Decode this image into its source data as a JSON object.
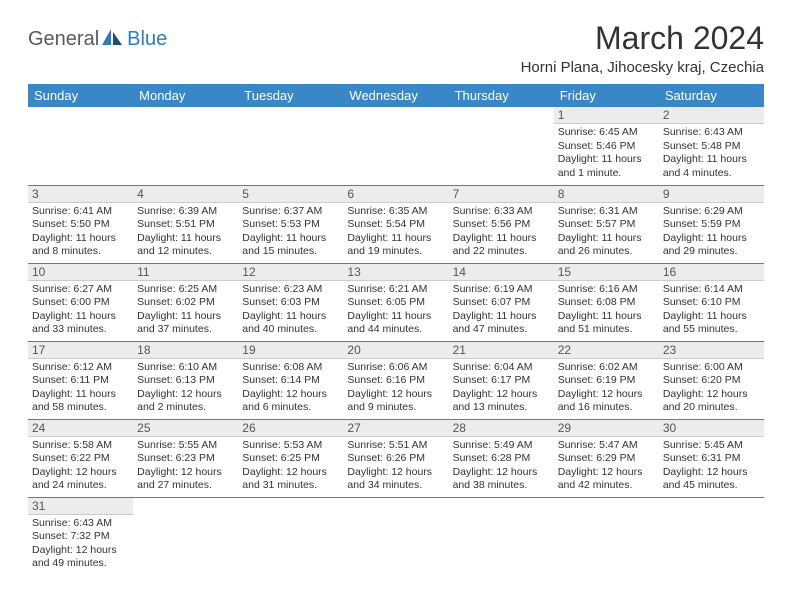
{
  "brand": {
    "part1": "General",
    "part2": "Blue"
  },
  "title": "March 2024",
  "location": "Horni Plana, Jihocesky kraj, Czechia",
  "colors": {
    "header_bg": "#3a87c8",
    "header_fg": "#ffffff",
    "daynum_bg": "#ececec",
    "border": "#3a87c8",
    "logo_gray": "#5a5a5a",
    "logo_blue": "#2f7bbf"
  },
  "weekdays": [
    "Sunday",
    "Monday",
    "Tuesday",
    "Wednesday",
    "Thursday",
    "Friday",
    "Saturday"
  ],
  "weeks": [
    [
      {
        "day": "",
        "sunrise": "",
        "sunset": "",
        "daylight": ""
      },
      {
        "day": "",
        "sunrise": "",
        "sunset": "",
        "daylight": ""
      },
      {
        "day": "",
        "sunrise": "",
        "sunset": "",
        "daylight": ""
      },
      {
        "day": "",
        "sunrise": "",
        "sunset": "",
        "daylight": ""
      },
      {
        "day": "",
        "sunrise": "",
        "sunset": "",
        "daylight": ""
      },
      {
        "day": "1",
        "sunrise": "Sunrise: 6:45 AM",
        "sunset": "Sunset: 5:46 PM",
        "daylight": "Daylight: 11 hours and 1 minute."
      },
      {
        "day": "2",
        "sunrise": "Sunrise: 6:43 AM",
        "sunset": "Sunset: 5:48 PM",
        "daylight": "Daylight: 11 hours and 4 minutes."
      }
    ],
    [
      {
        "day": "3",
        "sunrise": "Sunrise: 6:41 AM",
        "sunset": "Sunset: 5:50 PM",
        "daylight": "Daylight: 11 hours and 8 minutes."
      },
      {
        "day": "4",
        "sunrise": "Sunrise: 6:39 AM",
        "sunset": "Sunset: 5:51 PM",
        "daylight": "Daylight: 11 hours and 12 minutes."
      },
      {
        "day": "5",
        "sunrise": "Sunrise: 6:37 AM",
        "sunset": "Sunset: 5:53 PM",
        "daylight": "Daylight: 11 hours and 15 minutes."
      },
      {
        "day": "6",
        "sunrise": "Sunrise: 6:35 AM",
        "sunset": "Sunset: 5:54 PM",
        "daylight": "Daylight: 11 hours and 19 minutes."
      },
      {
        "day": "7",
        "sunrise": "Sunrise: 6:33 AM",
        "sunset": "Sunset: 5:56 PM",
        "daylight": "Daylight: 11 hours and 22 minutes."
      },
      {
        "day": "8",
        "sunrise": "Sunrise: 6:31 AM",
        "sunset": "Sunset: 5:57 PM",
        "daylight": "Daylight: 11 hours and 26 minutes."
      },
      {
        "day": "9",
        "sunrise": "Sunrise: 6:29 AM",
        "sunset": "Sunset: 5:59 PM",
        "daylight": "Daylight: 11 hours and 29 minutes."
      }
    ],
    [
      {
        "day": "10",
        "sunrise": "Sunrise: 6:27 AM",
        "sunset": "Sunset: 6:00 PM",
        "daylight": "Daylight: 11 hours and 33 minutes."
      },
      {
        "day": "11",
        "sunrise": "Sunrise: 6:25 AM",
        "sunset": "Sunset: 6:02 PM",
        "daylight": "Daylight: 11 hours and 37 minutes."
      },
      {
        "day": "12",
        "sunrise": "Sunrise: 6:23 AM",
        "sunset": "Sunset: 6:03 PM",
        "daylight": "Daylight: 11 hours and 40 minutes."
      },
      {
        "day": "13",
        "sunrise": "Sunrise: 6:21 AM",
        "sunset": "Sunset: 6:05 PM",
        "daylight": "Daylight: 11 hours and 44 minutes."
      },
      {
        "day": "14",
        "sunrise": "Sunrise: 6:19 AM",
        "sunset": "Sunset: 6:07 PM",
        "daylight": "Daylight: 11 hours and 47 minutes."
      },
      {
        "day": "15",
        "sunrise": "Sunrise: 6:16 AM",
        "sunset": "Sunset: 6:08 PM",
        "daylight": "Daylight: 11 hours and 51 minutes."
      },
      {
        "day": "16",
        "sunrise": "Sunrise: 6:14 AM",
        "sunset": "Sunset: 6:10 PM",
        "daylight": "Daylight: 11 hours and 55 minutes."
      }
    ],
    [
      {
        "day": "17",
        "sunrise": "Sunrise: 6:12 AM",
        "sunset": "Sunset: 6:11 PM",
        "daylight": "Daylight: 11 hours and 58 minutes."
      },
      {
        "day": "18",
        "sunrise": "Sunrise: 6:10 AM",
        "sunset": "Sunset: 6:13 PM",
        "daylight": "Daylight: 12 hours and 2 minutes."
      },
      {
        "day": "19",
        "sunrise": "Sunrise: 6:08 AM",
        "sunset": "Sunset: 6:14 PM",
        "daylight": "Daylight: 12 hours and 6 minutes."
      },
      {
        "day": "20",
        "sunrise": "Sunrise: 6:06 AM",
        "sunset": "Sunset: 6:16 PM",
        "daylight": "Daylight: 12 hours and 9 minutes."
      },
      {
        "day": "21",
        "sunrise": "Sunrise: 6:04 AM",
        "sunset": "Sunset: 6:17 PM",
        "daylight": "Daylight: 12 hours and 13 minutes."
      },
      {
        "day": "22",
        "sunrise": "Sunrise: 6:02 AM",
        "sunset": "Sunset: 6:19 PM",
        "daylight": "Daylight: 12 hours and 16 minutes."
      },
      {
        "day": "23",
        "sunrise": "Sunrise: 6:00 AM",
        "sunset": "Sunset: 6:20 PM",
        "daylight": "Daylight: 12 hours and 20 minutes."
      }
    ],
    [
      {
        "day": "24",
        "sunrise": "Sunrise: 5:58 AM",
        "sunset": "Sunset: 6:22 PM",
        "daylight": "Daylight: 12 hours and 24 minutes."
      },
      {
        "day": "25",
        "sunrise": "Sunrise: 5:55 AM",
        "sunset": "Sunset: 6:23 PM",
        "daylight": "Daylight: 12 hours and 27 minutes."
      },
      {
        "day": "26",
        "sunrise": "Sunrise: 5:53 AM",
        "sunset": "Sunset: 6:25 PM",
        "daylight": "Daylight: 12 hours and 31 minutes."
      },
      {
        "day": "27",
        "sunrise": "Sunrise: 5:51 AM",
        "sunset": "Sunset: 6:26 PM",
        "daylight": "Daylight: 12 hours and 34 minutes."
      },
      {
        "day": "28",
        "sunrise": "Sunrise: 5:49 AM",
        "sunset": "Sunset: 6:28 PM",
        "daylight": "Daylight: 12 hours and 38 minutes."
      },
      {
        "day": "29",
        "sunrise": "Sunrise: 5:47 AM",
        "sunset": "Sunset: 6:29 PM",
        "daylight": "Daylight: 12 hours and 42 minutes."
      },
      {
        "day": "30",
        "sunrise": "Sunrise: 5:45 AM",
        "sunset": "Sunset: 6:31 PM",
        "daylight": "Daylight: 12 hours and 45 minutes."
      }
    ],
    [
      {
        "day": "31",
        "sunrise": "Sunrise: 6:43 AM",
        "sunset": "Sunset: 7:32 PM",
        "daylight": "Daylight: 12 hours and 49 minutes."
      },
      {
        "day": "",
        "sunrise": "",
        "sunset": "",
        "daylight": ""
      },
      {
        "day": "",
        "sunrise": "",
        "sunset": "",
        "daylight": ""
      },
      {
        "day": "",
        "sunrise": "",
        "sunset": "",
        "daylight": ""
      },
      {
        "day": "",
        "sunrise": "",
        "sunset": "",
        "daylight": ""
      },
      {
        "day": "",
        "sunrise": "",
        "sunset": "",
        "daylight": ""
      },
      {
        "day": "",
        "sunrise": "",
        "sunset": "",
        "daylight": ""
      }
    ]
  ]
}
